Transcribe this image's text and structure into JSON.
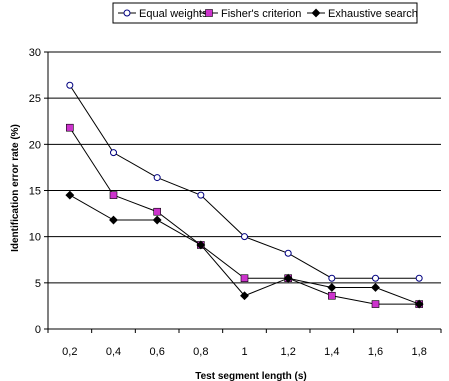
{
  "chart_data": {
    "type": "line",
    "xlabel": "Test segment length (s)",
    "ylabel": "Identification error rate (%)",
    "categories": [
      "0,2",
      "0,4",
      "0,6",
      "0,8",
      "1",
      "1,2",
      "1,4",
      "1,6",
      "1,8"
    ],
    "ylim": [
      0,
      30
    ],
    "yticks": [
      0,
      5,
      10,
      15,
      20,
      25,
      30
    ],
    "grid": "horizontal",
    "legend_position": "top",
    "series": [
      {
        "name": "Equal weights",
        "marker": "open-circle",
        "color": "#000000",
        "marker_color": "#ffffff",
        "values": [
          26.4,
          19.1,
          16.4,
          14.5,
          10.0,
          8.2,
          5.5,
          5.5,
          5.5
        ]
      },
      {
        "name": "Fisher's criterion",
        "marker": "square",
        "color": "#000000",
        "marker_color": "#cc33cc",
        "values": [
          21.8,
          14.5,
          12.7,
          9.1,
          5.5,
          5.5,
          3.6,
          2.7,
          2.7
        ]
      },
      {
        "name": "Exhaustive search",
        "marker": "diamond",
        "color": "#000000",
        "marker_color": "#000000",
        "values": [
          14.5,
          11.8,
          11.8,
          9.1,
          3.6,
          5.5,
          4.5,
          4.5,
          2.7
        ]
      }
    ]
  }
}
